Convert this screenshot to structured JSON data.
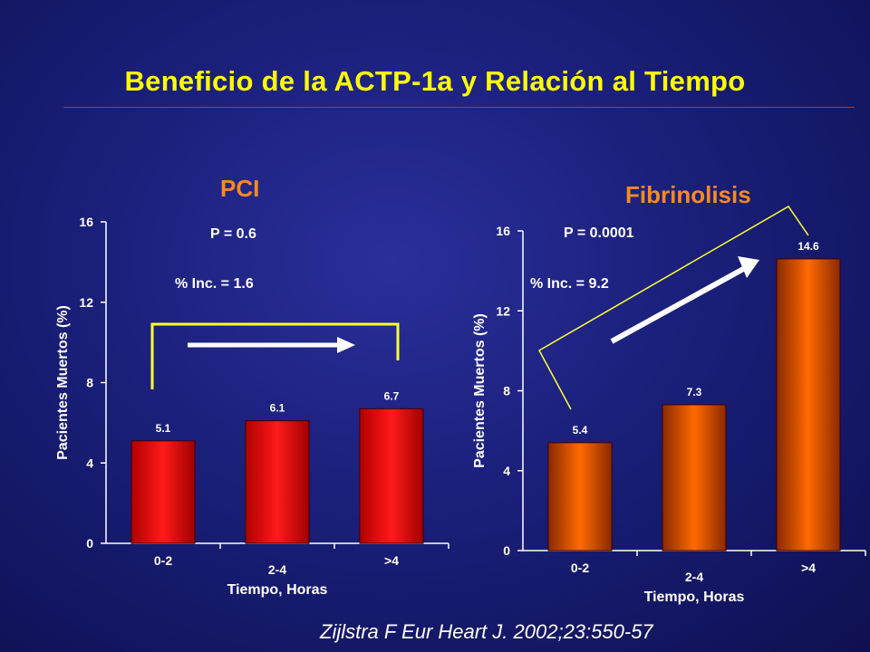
{
  "title": "Beneficio de la ACTP-1a y Relación al Tiempo",
  "citation": "Zijlstra F  Eur Heart J. 2002;23:550-57",
  "colors": {
    "background": "#1a1f7a",
    "title": "#ffff00",
    "panel_title": "#ff8a1e",
    "pci_bars": "#ff1a1a",
    "fib_bars": "#ff6a00",
    "bracket": "#ffff33"
  },
  "chart_data": [
    {
      "type": "bar",
      "title": "PCI",
      "categories": [
        "0-2",
        "2-4",
        ">4"
      ],
      "values": [
        5.1,
        6.1,
        6.7
      ],
      "data_labels": [
        "5.1",
        "6.1",
        "6.7"
      ],
      "xlabel": "Tiempo, Horas",
      "ylabel": "Pacientes Muertos (%)",
      "ylim": [
        0,
        16
      ],
      "yticks": [
        "0",
        "4",
        "8",
        "12",
        "16"
      ],
      "annotations": {
        "p_value": "P = 0.6",
        "increase": "% Inc. = 1.6"
      },
      "grid": false
    },
    {
      "type": "bar",
      "title": "Fibrinolisis",
      "categories": [
        "0-2",
        "2-4",
        ">4"
      ],
      "values": [
        5.4,
        7.3,
        14.6
      ],
      "data_labels": [
        "5.4",
        "7.3",
        "14.6"
      ],
      "xlabel": "Tiempo, Horas",
      "ylabel": "Pacientes Muertos (%)",
      "ylim": [
        0,
        16
      ],
      "yticks": [
        "0",
        "4",
        "8",
        "12",
        "16"
      ],
      "annotations": {
        "p_value": "P = 0.0001",
        "increase": "% Inc. = 9.2"
      },
      "grid": false
    }
  ]
}
